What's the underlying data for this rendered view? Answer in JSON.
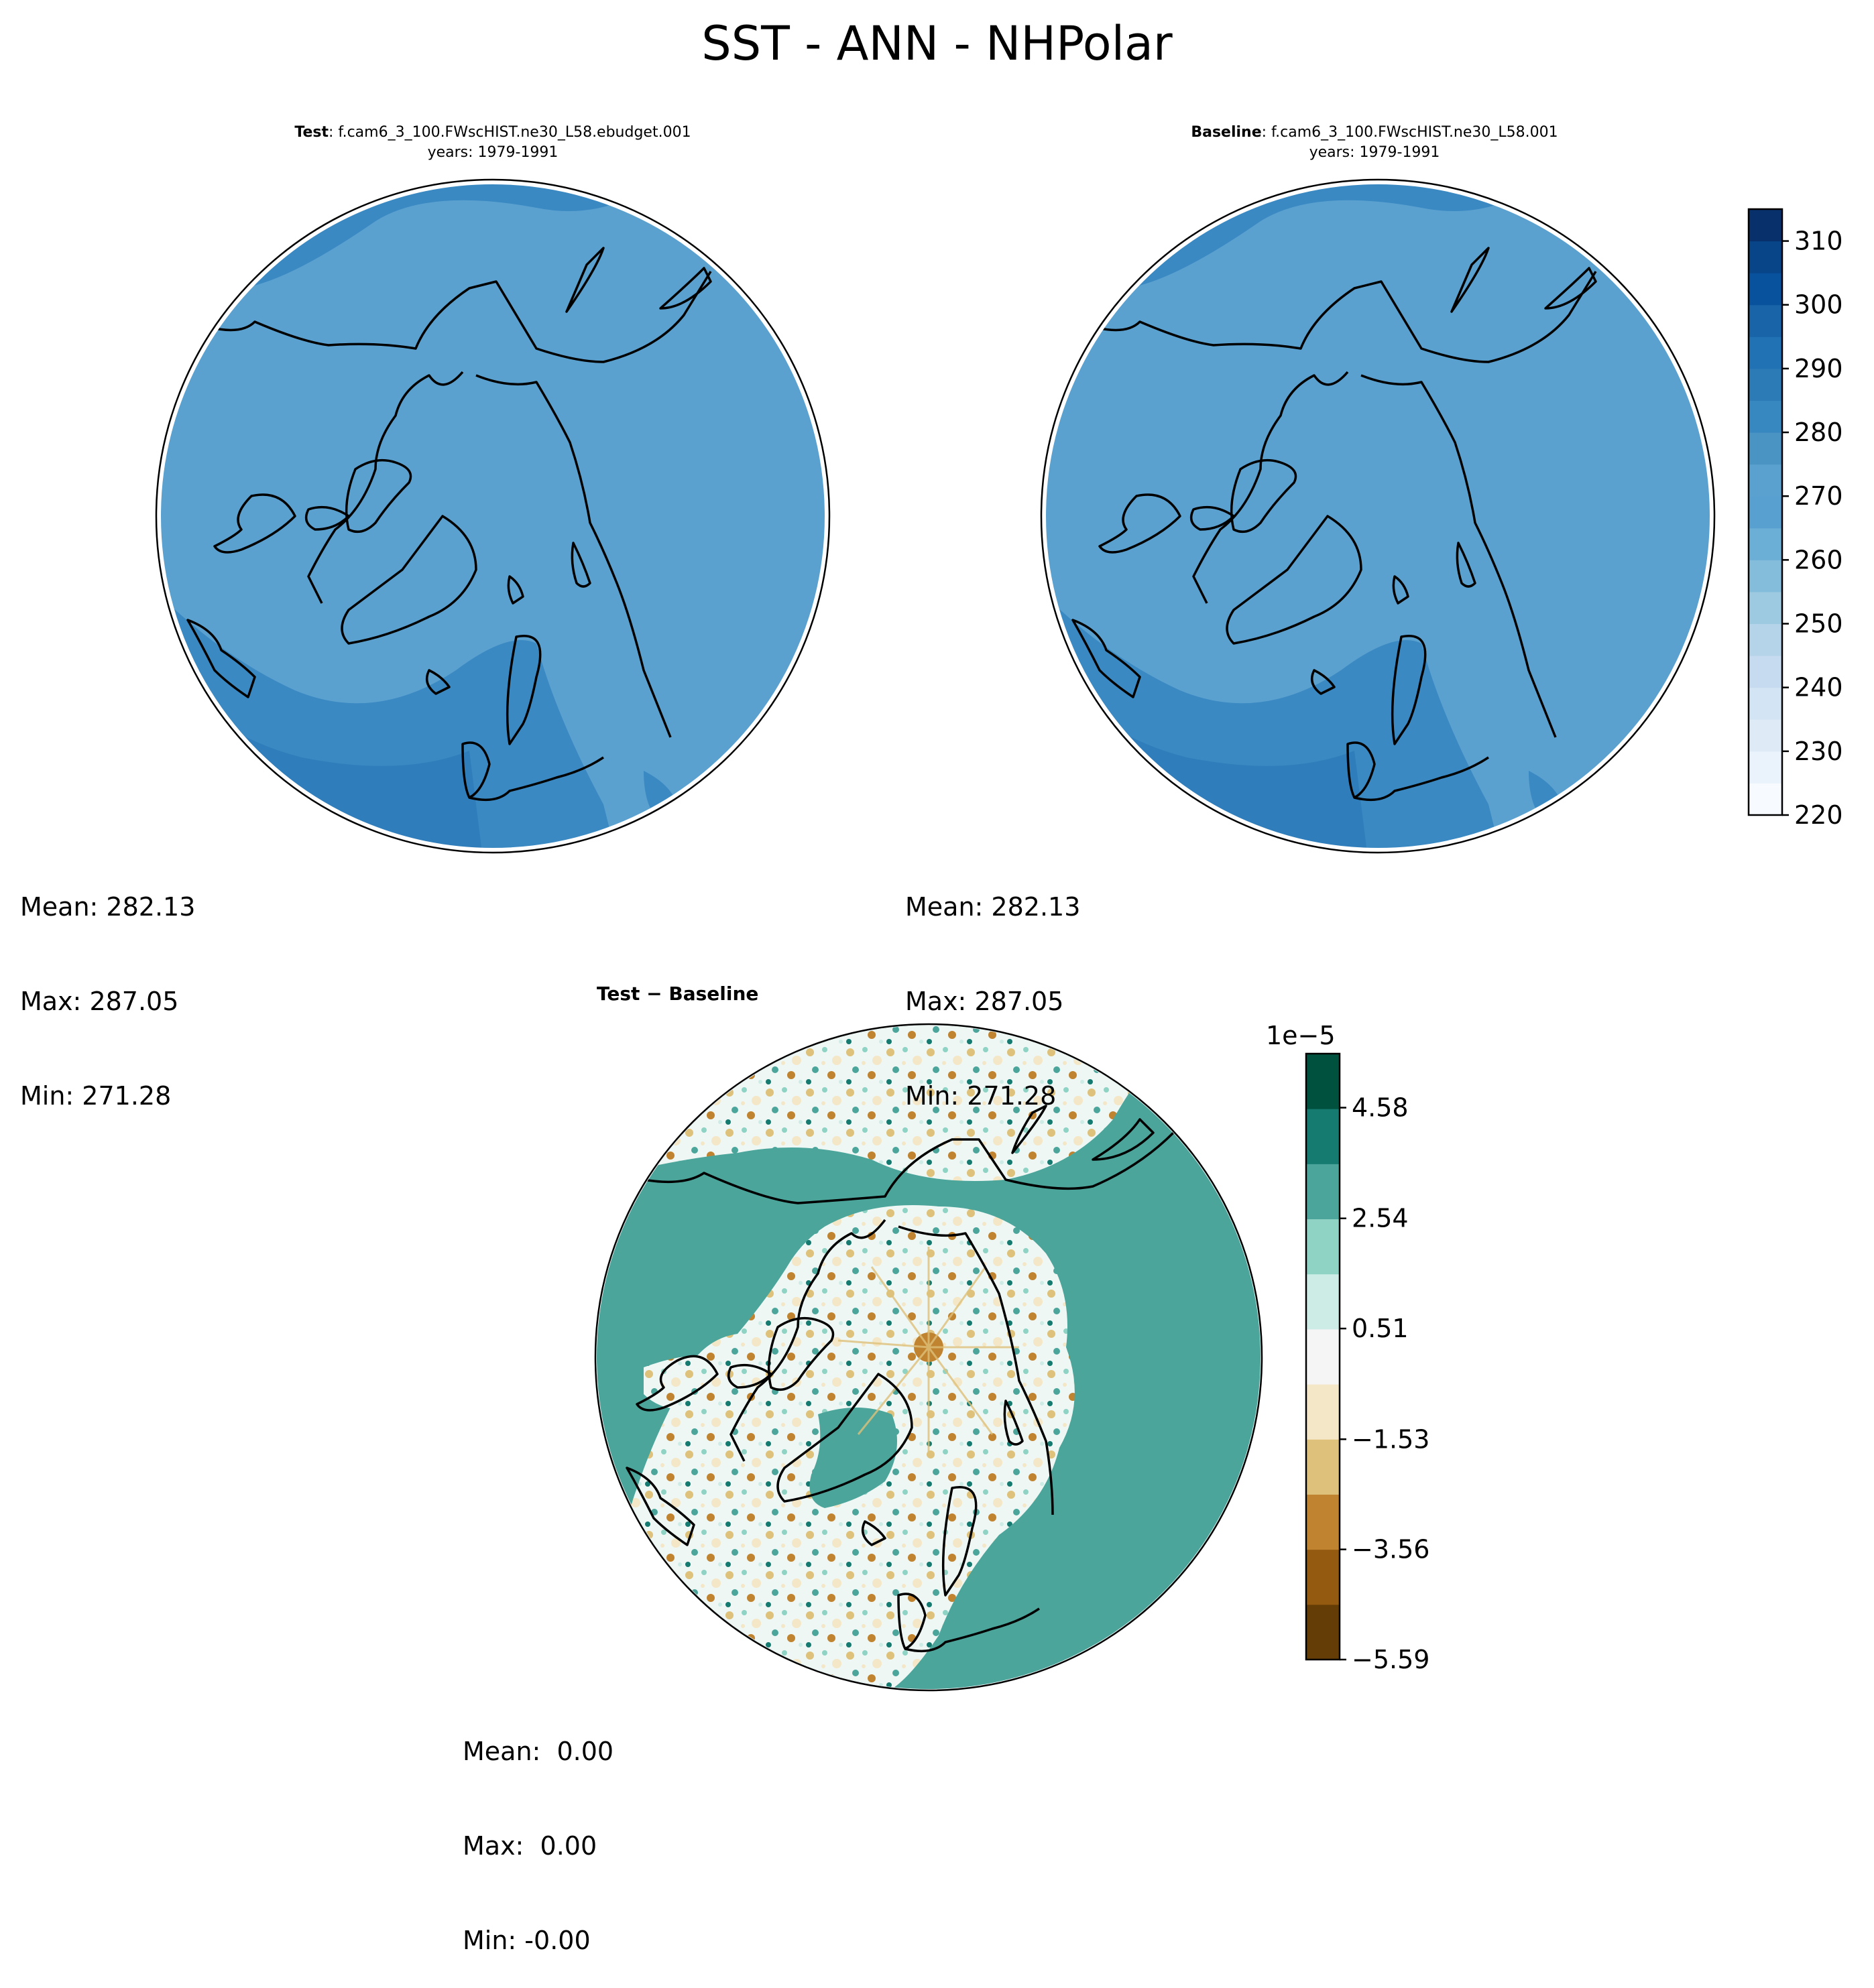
{
  "figure": {
    "title": "SST - ANN - NHPolar"
  },
  "panels": {
    "test": {
      "label": "Test",
      "case": ": f.cam6_3_100.FWscHIST.ne30_L58.ebudget.001",
      "years": "years: 1979-1991",
      "mean": "Mean: 282.13",
      "max": "Max: 287.05",
      "min": "Min: 271.28"
    },
    "baseline": {
      "label": "Baseline",
      "case": ": f.cam6_3_100.FWscHIST.ne30_L58.001",
      "years": "years: 1979-1991",
      "mean": "Mean: 282.13",
      "max": "Max: 287.05",
      "min": "Min: 271.28"
    },
    "diff": {
      "label": "Test − Baseline",
      "mean": "Mean:  0.00",
      "max": "Max:  0.00",
      "min": "Min: -0.00"
    }
  },
  "chart_data": [
    {
      "type": "heatmap",
      "projection": "north polar stereographic",
      "title": "Test : f.cam6_3_100.FWscHIST.ne30_L58.ebudget.001",
      "colormap": "Blues",
      "levels": [
        220,
        225,
        230,
        235,
        240,
        245,
        250,
        255,
        260,
        265,
        270,
        275,
        280,
        285,
        290,
        295,
        300,
        305,
        310,
        315
      ],
      "colorbar_ticks": [
        "220",
        "230",
        "240",
        "250",
        "260",
        "270",
        "280",
        "290",
        "300",
        "310"
      ],
      "stats": {
        "mean": 282.13,
        "max": 287.05,
        "min": 271.28
      }
    },
    {
      "type": "heatmap",
      "projection": "north polar stereographic",
      "title": "Baseline : f.cam6_3_100.FWscHIST.ne30_L58.001",
      "colormap": "Blues",
      "levels": [
        220,
        225,
        230,
        235,
        240,
        245,
        250,
        255,
        260,
        265,
        270,
        275,
        280,
        285,
        290,
        295,
        300,
        305,
        310,
        315
      ],
      "colorbar_ticks": [
        "220",
        "230",
        "240",
        "250",
        "260",
        "270",
        "280",
        "290",
        "300",
        "310"
      ],
      "stats": {
        "mean": 282.13,
        "max": 287.05,
        "min": 271.28
      }
    },
    {
      "type": "heatmap",
      "projection": "north polar stereographic",
      "title": "Test − Baseline",
      "colormap": "BrBG",
      "colorbar_scale_label": "1e−5",
      "colorbar_ticks": [
        "−5.59",
        "−3.56",
        "−1.53",
        "0.51",
        "2.54",
        "4.58"
      ],
      "colorbar_tick_values": [
        -5.59,
        -3.56,
        -1.53,
        0.51,
        2.54,
        4.58
      ],
      "stats": {
        "mean": 0.0,
        "max": 0.0,
        "min": -0.0
      }
    }
  ],
  "colors": {
    "blues": [
      "#f7fbff",
      "#eaf3fb",
      "#deebf7",
      "#d3e5f4",
      "#c6dbef",
      "#b5d4e9",
      "#9ecae1",
      "#84bcdb",
      "#6baed6",
      "#58a0cf",
      "#5ba1d0",
      "#4a94c4",
      "#3787c0",
      "#2c7bb6",
      "#2171b5",
      "#1963a9",
      "#08519c",
      "#084488",
      "#08306b"
    ],
    "brbg": [
      "#643c06",
      "#945a10",
      "#c08330",
      "#dec17a",
      "#f4e7c7",
      "#f5f5f5",
      "#cdece6",
      "#8fd3c5",
      "#4ba59b",
      "#157a70",
      "#00523f"
    ]
  }
}
